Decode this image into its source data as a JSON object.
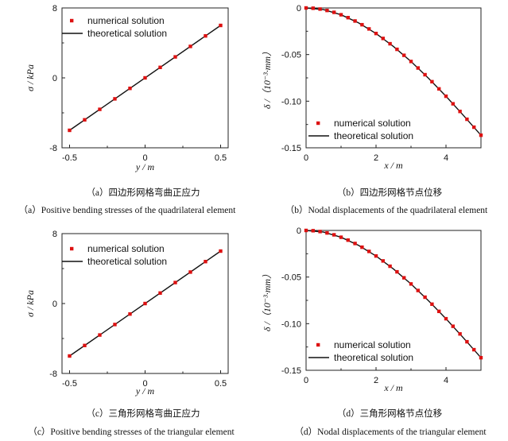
{
  "chart_data": [
    {
      "type": "line",
      "xlabel": "y / m",
      "ylabel": "σ / kPa",
      "xlim": [
        -0.55,
        0.55
      ],
      "ylim": [
        -8,
        8
      ],
      "xticks": [
        "-0.5",
        "0",
        "0.5"
      ],
      "yticks": [
        "-8",
        "0",
        "8"
      ],
      "legend_position": "top-left",
      "series": [
        {
          "name": "numerical solution",
          "style": "markers",
          "color": "#dd1111",
          "x": [
            -0.5,
            -0.4,
            -0.3,
            -0.2,
            -0.1,
            0,
            0.1,
            0.2,
            0.3,
            0.4,
            0.5
          ],
          "y": [
            -6,
            -4.8,
            -3.6,
            -2.4,
            -1.2,
            0,
            1.2,
            2.4,
            3.6,
            4.8,
            6
          ]
        },
        {
          "name": "theoretical solution",
          "style": "line",
          "color": "#111111",
          "x": [
            -0.5,
            0.5
          ],
          "y": [
            -6,
            6
          ]
        }
      ],
      "caption_cn": "（a）四边形网格弯曲正应力",
      "caption_en": "（a）Positive bending stresses of the quadrilateral element"
    },
    {
      "type": "line",
      "xlabel": "x / m",
      "ylabel": "δ /（10⁻³·mm）",
      "xlim": [
        0,
        5
      ],
      "ylim": [
        -0.15,
        0
      ],
      "xticks": [
        "0",
        "2",
        "4"
      ],
      "yticks": [
        "0",
        "-0.05",
        "-0.10",
        "-0.15"
      ],
      "legend_position": "bottom-right",
      "series": [
        {
          "name": "numerical solution",
          "style": "markers",
          "color": "#dd1111",
          "x": [
            0,
            0.2,
            0.4,
            0.6,
            0.8,
            1.0,
            1.2,
            1.4,
            1.6,
            1.8,
            2.0,
            2.2,
            2.4,
            2.6,
            2.8,
            3.0,
            3.2,
            3.4,
            3.6,
            3.8,
            4.0,
            4.2,
            4.4,
            4.6,
            4.8,
            5.0
          ],
          "y": [
            0,
            -0.0003,
            -0.0012,
            -0.0027,
            -0.0047,
            -0.0073,
            -0.0104,
            -0.014,
            -0.018,
            -0.0225,
            -0.0274,
            -0.0327,
            -0.0384,
            -0.0444,
            -0.0508,
            -0.0574,
            -0.0644,
            -0.0716,
            -0.0791,
            -0.0868,
            -0.0947,
            -0.1028,
            -0.111,
            -0.1194,
            -0.1279,
            -0.1365
          ]
        },
        {
          "name": "theoretical solution",
          "style": "line",
          "color": "#111111",
          "x": [
            0,
            0.5,
            1.0,
            1.5,
            2.0,
            2.5,
            3.0,
            3.5,
            4.0,
            4.5,
            5.0
          ],
          "y": [
            0,
            -0.0018,
            -0.0073,
            -0.016,
            -0.0274,
            -0.0414,
            -0.0574,
            -0.0754,
            -0.0947,
            -0.1153,
            -0.1365
          ]
        }
      ],
      "caption_cn": "（b）四边形网格节点位移",
      "caption_en": "（b）Nodal displacements of the quadrilateral element"
    },
    {
      "type": "line",
      "xlabel": "y / m",
      "ylabel": "σ / kPa",
      "xlim": [
        -0.55,
        0.55
      ],
      "ylim": [
        -8,
        8
      ],
      "xticks": [
        "-0.5",
        "0",
        "0.5"
      ],
      "yticks": [
        "-8",
        "0",
        "8"
      ],
      "legend_position": "top-left",
      "series": [
        {
          "name": "numerical solution",
          "style": "markers",
          "color": "#dd1111",
          "x": [
            -0.5,
            -0.4,
            -0.3,
            -0.2,
            -0.1,
            0,
            0.1,
            0.2,
            0.3,
            0.4,
            0.5
          ],
          "y": [
            -6,
            -4.8,
            -3.6,
            -2.4,
            -1.2,
            0,
            1.2,
            2.4,
            3.6,
            4.8,
            6
          ]
        },
        {
          "name": "theoretical solution",
          "style": "line",
          "color": "#111111",
          "x": [
            -0.5,
            0.5
          ],
          "y": [
            -6,
            6
          ]
        }
      ],
      "caption_cn": "（c）三角形网格弯曲正应力",
      "caption_en": "（c）Positive bending stresses of the triangular element"
    },
    {
      "type": "line",
      "xlabel": "x / m",
      "ylabel": "δ /（10⁻³·mm）",
      "xlim": [
        0,
        5
      ],
      "ylim": [
        -0.15,
        0
      ],
      "xticks": [
        "0",
        "2",
        "4"
      ],
      "yticks": [
        "0",
        "-0.05",
        "-0.10",
        "-0.15"
      ],
      "legend_position": "bottom-right",
      "series": [
        {
          "name": "numerical solution",
          "style": "markers",
          "color": "#dd1111",
          "x": [
            0,
            0.2,
            0.4,
            0.6,
            0.8,
            1.0,
            1.2,
            1.4,
            1.6,
            1.8,
            2.0,
            2.2,
            2.4,
            2.6,
            2.8,
            3.0,
            3.2,
            3.4,
            3.6,
            3.8,
            4.0,
            4.2,
            4.4,
            4.6,
            4.8,
            5.0
          ],
          "y": [
            0,
            -0.0003,
            -0.0012,
            -0.0027,
            -0.0047,
            -0.0073,
            -0.0104,
            -0.014,
            -0.018,
            -0.0225,
            -0.0274,
            -0.0327,
            -0.0384,
            -0.0444,
            -0.0508,
            -0.0574,
            -0.0644,
            -0.0716,
            -0.0791,
            -0.0868,
            -0.0947,
            -0.1028,
            -0.111,
            -0.1194,
            -0.1279,
            -0.1365
          ]
        },
        {
          "name": "theoretical solution",
          "style": "line",
          "color": "#111111",
          "x": [
            0,
            0.5,
            1.0,
            1.5,
            2.0,
            2.5,
            3.0,
            3.5,
            4.0,
            4.5,
            5.0
          ],
          "y": [
            0,
            -0.0018,
            -0.0073,
            -0.016,
            -0.0274,
            -0.0414,
            -0.0574,
            -0.0754,
            -0.0947,
            -0.1153,
            -0.1365
          ]
        }
      ],
      "caption_cn": "（d）三角形网格节点位移",
      "caption_en": "（d）Nodal displacements of the triangular element"
    }
  ]
}
